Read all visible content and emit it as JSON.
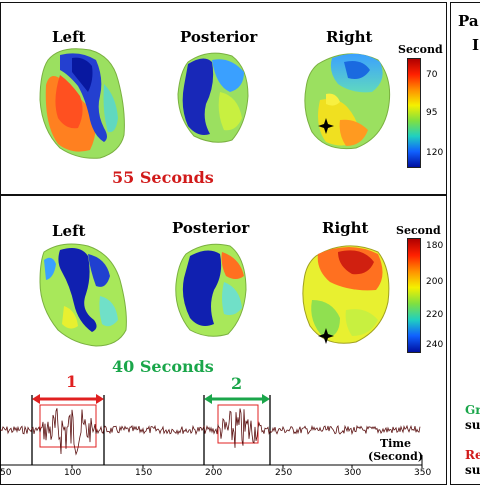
{
  "panel_top": {
    "views": [
      "Left",
      "Posterior",
      "Right"
    ],
    "colorbar": {
      "title": "Second",
      "ticks": [
        "70",
        "95",
        "120"
      ]
    },
    "duration": "55 Seconds",
    "duration_color": "#d11a1a"
  },
  "panel_mid": {
    "views": [
      "Left",
      "Posterior",
      "Right"
    ],
    "colorbar": {
      "title": "Second",
      "ticks": [
        "180",
        "200",
        "220",
        "240"
      ]
    },
    "duration": "40 Seconds",
    "duration_color": "#1aa64a"
  },
  "right_panel": {
    "title_line1": "Pa",
    "title_line2": "I",
    "label_green_1": "Gr",
    "label_green_2": "su",
    "label_red_1": "Re",
    "label_red_2": "su"
  },
  "signal": {
    "segment_1": "1",
    "segment_2": "2",
    "time_label_1": "Time",
    "time_label_2": "(Second)",
    "x_ticks": [
      "50",
      "100",
      "150",
      "200",
      "250",
      "300",
      "350"
    ]
  },
  "colors": {
    "segment_1": "#e02020",
    "segment_2": "#1aa64a",
    "signal": "#5a1010"
  }
}
